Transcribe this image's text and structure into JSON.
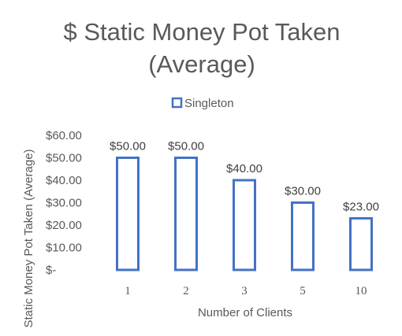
{
  "chart_data": {
    "type": "bar",
    "title_lines": [
      "$ Static Money Pot Taken",
      "(Average)"
    ],
    "xlabel": "Number of Clients",
    "ylabel": "Static Money Pot Taken (Average)",
    "categories": [
      "1",
      "2",
      "3",
      "5",
      "10"
    ],
    "series": [
      {
        "name": "Singleton",
        "values": [
          50,
          50,
          40,
          30,
          23
        ],
        "data_labels": [
          "$50.00",
          "$50.00",
          "$40.00",
          "$30.00",
          "$23.00"
        ],
        "color": "#4472C4"
      }
    ],
    "ylim": [
      0,
      60
    ],
    "yticks": [
      0,
      10,
      20,
      30,
      40,
      50,
      60
    ],
    "ytick_labels": [
      "$-",
      "$10.00",
      "$20.00",
      "$30.00",
      "$40.00",
      "$50.00",
      "$60.00"
    ],
    "legend_position": "top",
    "grid": false
  }
}
